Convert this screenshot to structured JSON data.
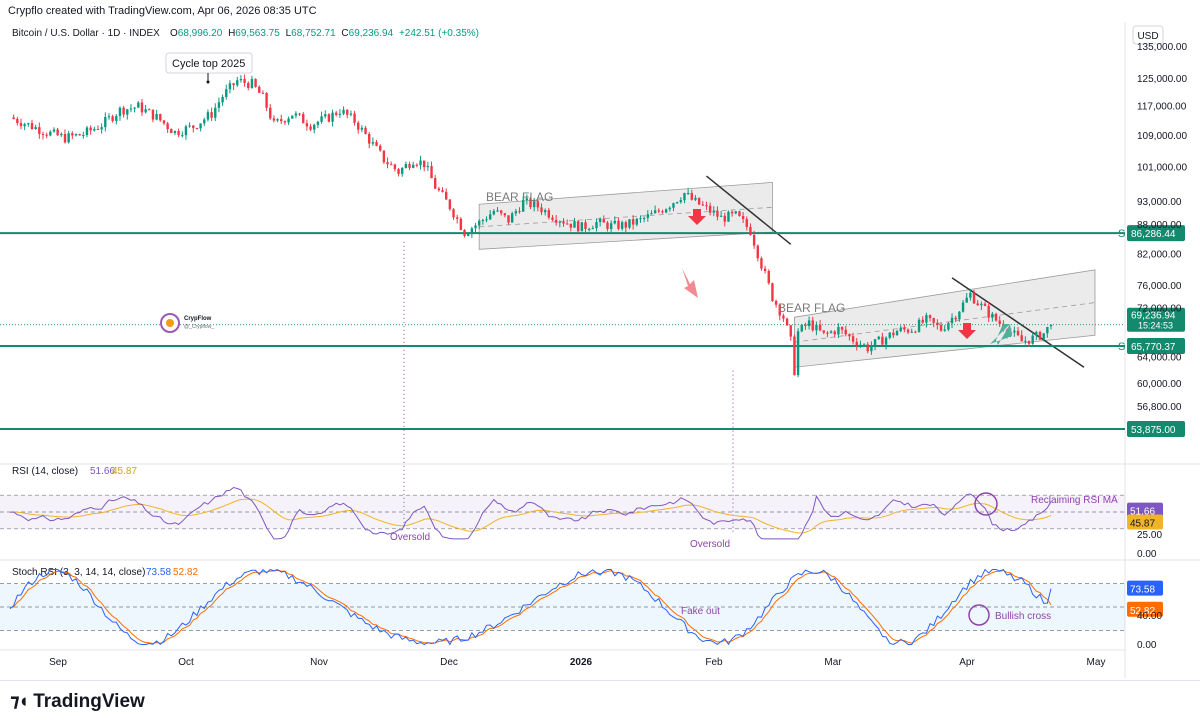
{
  "header": {
    "created_by": "Crypflo created with TradingView.com, Apr 06, 2026 08:35 UTC"
  },
  "legend": {
    "symbol": "Bitcoin / U.S. Dollar · 1D · INDEX",
    "o_label": "O",
    "o": "68,996.20",
    "h_label": "H",
    "h": "69,563.75",
    "l_label": "L",
    "l": "68,752.71",
    "c_label": "C",
    "c": "69,236.94",
    "change": "+242.51 (+0.35%)"
  },
  "colors": {
    "up": "#089981",
    "down": "#f23645",
    "level": "#138a6e",
    "rsi": "#7e57c2",
    "rsi_ma": "#f0b429",
    "stoch_k": "#2962ff",
    "stoch_d": "#ff6d00",
    "arrow_down": "#f23645",
    "arrow_up": "#4fb09c",
    "annot": "#8e44ad"
  },
  "currency": "USD",
  "watermark": {
    "brand": "CrypFlow",
    "handle": "@_Crypflow_"
  },
  "annotations": {
    "cycle_top": "Cycle top 2025",
    "bear_flag_1": "BEAR FLAG",
    "bear_flag_2": "BEAR FLAG",
    "oversold_1": "Oversold",
    "oversold_2": "Oversold",
    "reclaiming": "Reclaiming RSI MA",
    "fake_out": "Fake out",
    "bullish_cross": "Bullish cross",
    "s_label": "S"
  },
  "price_badges": {
    "level_1": "86,286.44",
    "current_price": "69,236.94",
    "countdown": "15:24:53",
    "level_2": "65,770.37",
    "level_3": "53,875.00"
  },
  "rsi_legend": {
    "label": "RSI (14, close)",
    "value": "51.66",
    "ma": "45.87"
  },
  "stoch_legend": {
    "label": "Stoch RSI (3, 3, 14, 14, close)",
    "k": "73.58",
    "d": "52.82"
  },
  "chart_data": {
    "type": "candlestick",
    "title": "Bitcoin / U.S. Dollar · 1D · INDEX",
    "ylabel": "USD",
    "ylim": [
      50000,
      140000
    ],
    "y_scale": "log",
    "price_ticks": [
      "135,000.00",
      "125,000.00",
      "117,000.00",
      "109,000.00",
      "101,000.00",
      "93,000.00",
      "88,000.00",
      "82,000.00",
      "76,000.00",
      "72,000.00",
      "64,000.00",
      "60,000.00",
      "56,800.00"
    ],
    "x_ticks": [
      "Sep",
      "Oct",
      "Nov",
      "Dec",
      "2026",
      "Feb",
      "Mar",
      "Apr",
      "May"
    ],
    "levels": [
      86286.44,
      65770.37,
      53875.0
    ],
    "price_path": [
      [
        0,
        114000
      ],
      [
        5,
        112000
      ],
      [
        10,
        110000
      ],
      [
        15,
        108500
      ],
      [
        20,
        109500
      ],
      [
        25,
        112000
      ],
      [
        30,
        116000
      ],
      [
        35,
        117000
      ],
      [
        40,
        114000
      ],
      [
        45,
        110000
      ],
      [
        50,
        111500
      ],
      [
        55,
        115000
      ],
      [
        58,
        120000
      ],
      [
        62,
        124500
      ],
      [
        66,
        123500
      ],
      [
        69,
        119500
      ],
      [
        72,
        112000
      ],
      [
        77,
        115000
      ],
      [
        82,
        112000
      ],
      [
        87,
        114000
      ],
      [
        90,
        116000
      ],
      [
        94,
        113000
      ],
      [
        98,
        108000
      ],
      [
        102,
        103000
      ],
      [
        106,
        100000
      ],
      [
        110,
        103000
      ],
      [
        113,
        102000
      ],
      [
        116,
        96500
      ],
      [
        120,
        92000
      ],
      [
        124,
        86500
      ],
      [
        128,
        88500
      ],
      [
        132,
        91000
      ],
      [
        136,
        89000
      ],
      [
        140,
        93000
      ],
      [
        144,
        92000
      ],
      [
        148,
        90000
      ],
      [
        152,
        88500
      ],
      [
        156,
        87500
      ],
      [
        160,
        88500
      ],
      [
        164,
        87800
      ],
      [
        168,
        88000
      ],
      [
        172,
        89000
      ],
      [
        176,
        90500
      ],
      [
        180,
        92500
      ],
      [
        184,
        95000
      ],
      [
        186,
        93500
      ],
      [
        190,
        91500
      ],
      [
        194,
        89500
      ],
      [
        198,
        90000
      ],
      [
        200,
        88500
      ],
      [
        202,
        86800
      ],
      [
        205,
        80000
      ],
      [
        208,
        74000
      ],
      [
        211,
        70500
      ],
      [
        213,
        66500
      ],
      [
        214,
        62000
      ],
      [
        215,
        68000
      ],
      [
        218,
        69500
      ],
      [
        222,
        67500
      ],
      [
        226,
        68500
      ],
      [
        230,
        66800
      ],
      [
        234,
        65500
      ],
      [
        238,
        66800
      ],
      [
        242,
        68200
      ],
      [
        246,
        68500
      ],
      [
        250,
        70000
      ],
      [
        254,
        68500
      ],
      [
        258,
        71000
      ],
      [
        262,
        74500
      ],
      [
        264,
        73000
      ],
      [
        268,
        70500
      ],
      [
        272,
        68500
      ],
      [
        276,
        66500
      ],
      [
        279,
        67000
      ],
      [
        282,
        67800
      ],
      [
        284,
        69236.94
      ]
    ],
    "channels": [
      {
        "name": "BEAR FLAG",
        "upper": [
          [
            128,
            92500
          ],
          [
            208,
            97500
          ]
        ],
        "lower": [
          [
            128,
            83000
          ],
          [
            208,
            86500
          ]
        ]
      },
      {
        "name": "BEAR FLAG",
        "upper": [
          [
            214,
            70500
          ],
          [
            296,
            79000
          ]
        ],
        "lower": [
          [
            214,
            62500
          ],
          [
            296,
            67500
          ]
        ]
      }
    ],
    "rsi": {
      "name": "RSI (14, close)",
      "value": 51.66,
      "ma": 45.87,
      "bands": [
        70,
        50,
        30
      ],
      "ticks": [
        "25.00",
        "0.00"
      ]
    },
    "stoch_rsi": {
      "name": "Stoch RSI (3, 3, 14, 14, close)",
      "k": 73.58,
      "d": 52.82,
      "bands": [
        80,
        50,
        20
      ],
      "ticks": [
        "40.00",
        "0.00"
      ]
    }
  }
}
